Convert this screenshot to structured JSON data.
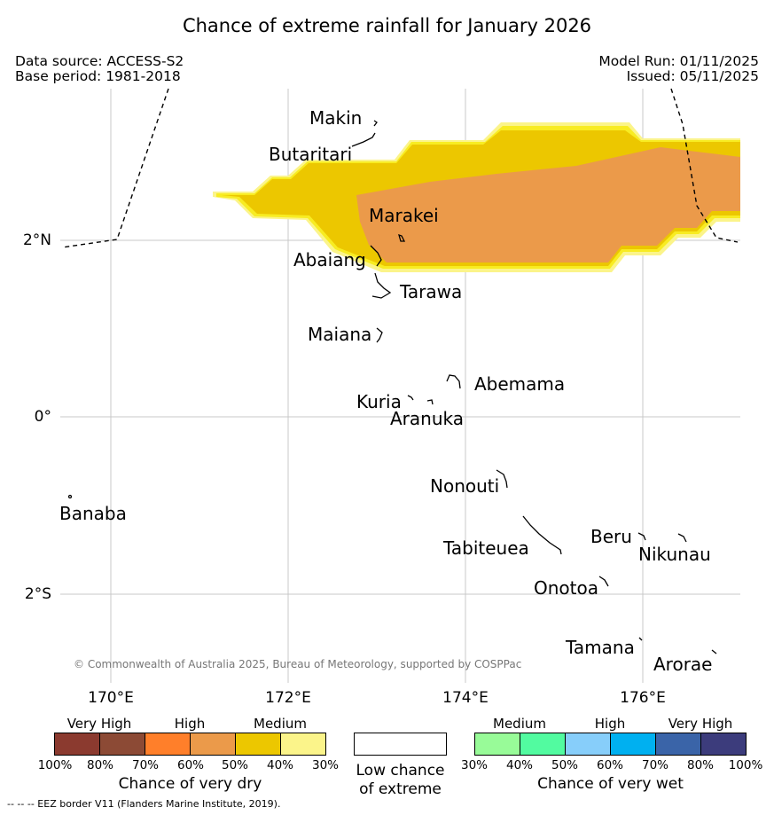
{
  "title": "Chance of extreme rainfall for January 2026",
  "data_source": "Data source: ACCESS-S2",
  "base_period": "Base period: 1981-2018",
  "model_run": "Model Run: 01/11/2025",
  "issued": "Issued: 05/11/2025",
  "latitude_labels": [
    "2°N",
    "0°",
    "2°S"
  ],
  "longitude_labels": [
    "170°E",
    "172°E",
    "174°E",
    "176°E"
  ],
  "islands": [
    "Makin",
    "Butaritari",
    "Marakei",
    "Abaiang",
    "Tarawa",
    "Maiana",
    "Abemama",
    "Kuria",
    "Aranuka",
    "Nonouti",
    "Banaba",
    "Tabiteuea",
    "Beru",
    "Nikunau",
    "Onotoa",
    "Tamana",
    "Arorae"
  ],
  "credit": "© Commonwealth of Australia 2025, Bureau of Meteorology, supported by COSPPac",
  "dry_legend": {
    "categories": [
      "Very High",
      "High",
      "Medium"
    ],
    "ticks": [
      "100%",
      "80%",
      "70%",
      "60%",
      "50%",
      "40%",
      "30%"
    ],
    "colors": [
      "#8b3a2f",
      "#8c4a35",
      "#ff7f2a",
      "#eb9a4a",
      "#ecc700",
      "#fbf48a"
    ],
    "label": "Chance of very dry"
  },
  "low_chance_label": "Low chance of extreme",
  "wet_legend": {
    "categories": [
      "Medium",
      "High",
      "Very High"
    ],
    "ticks": [
      "30%",
      "40%",
      "50%",
      "60%",
      "70%",
      "80%",
      "100%"
    ],
    "colors": [
      "#98fb98",
      "#52fba0",
      "#87cefa",
      "#00b0f0",
      "#3a64a8",
      "#3c3c7c"
    ],
    "label": "Chance of very wet"
  },
  "eez_note": "--  --  -- EEZ border V11 (Flanders Marine Institute, 2019).",
  "region_colors": {
    "light_yellow": "#fbf48a",
    "bright_yellow": "#f8ec22",
    "medium": "#ecc700",
    "high": "#eb9a4a"
  }
}
